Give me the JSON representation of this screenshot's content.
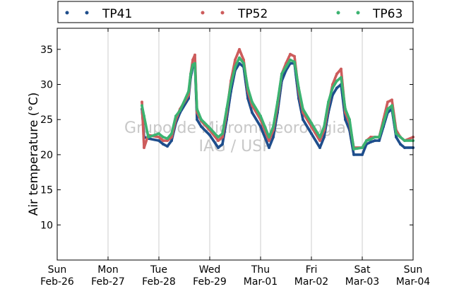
{
  "chart_data": {
    "type": "scatter",
    "title": "",
    "xlabel": "",
    "ylabel": "Air temperature (°C)",
    "ylim": [
      5,
      38
    ],
    "yticks": [
      10,
      15,
      20,
      25,
      30,
      35
    ],
    "xlim": [
      "2012-02-26",
      "2012-03-04"
    ],
    "xticks": [
      {
        "dow": "Sun",
        "date": "Feb-26"
      },
      {
        "dow": "Mon",
        "date": "Feb-27"
      },
      {
        "dow": "Tue",
        "date": "Feb-28"
      },
      {
        "dow": "Wed",
        "date": "Feb-29"
      },
      {
        "dow": "Thu",
        "date": "Mar-01"
      },
      {
        "dow": "Fri",
        "date": "Mar-02"
      },
      {
        "dow": "Sat",
        "date": "Mar-03"
      },
      {
        "dow": "Sun",
        "date": "Mar-04"
      }
    ],
    "grid": "vertical",
    "legend_position": "top",
    "watermark": [
      "Grupo de Micrometeorologia",
      "IAG / USP"
    ],
    "series": [
      {
        "name": "TP41",
        "color": "#1f4e8c",
        "points": [
          [
            "2012-02-27T16:00",
            26.5
          ],
          [
            "2012-02-27T17:00",
            22.5
          ],
          [
            "2012-02-27T19:00",
            22.3
          ],
          [
            "2012-02-28T00:00",
            22.0
          ],
          [
            "2012-02-28T02:00",
            21.5
          ],
          [
            "2012-02-28T04:00",
            21.2
          ],
          [
            "2012-02-28T06:00",
            22.0
          ],
          [
            "2012-02-28T08:00",
            24.5
          ],
          [
            "2012-02-28T10:00",
            26.0
          ],
          [
            "2012-02-28T14:00",
            28.0
          ],
          [
            "2012-02-28T15:00",
            31.0
          ],
          [
            "2012-02-28T16:00",
            32.5
          ],
          [
            "2012-02-28T17:00",
            33.0
          ],
          [
            "2012-02-28T18:00",
            25.0
          ],
          [
            "2012-02-28T20:00",
            24.0
          ],
          [
            "2012-02-29T00:00",
            22.8
          ],
          [
            "2012-02-29T04:00",
            21.0
          ],
          [
            "2012-02-29T06:00",
            21.5
          ],
          [
            "2012-02-29T08:00",
            25.0
          ],
          [
            "2012-02-29T10:00",
            29.0
          ],
          [
            "2012-02-29T12:00",
            32.0
          ],
          [
            "2012-02-29T14:00",
            33.0
          ],
          [
            "2012-02-29T16:00",
            32.5
          ],
          [
            "2012-02-29T18:00",
            28.0
          ],
          [
            "2012-02-29T20:00",
            26.0
          ],
          [
            "2012-03-01T00:00",
            24.0
          ],
          [
            "2012-03-01T04:00",
            21.0
          ],
          [
            "2012-03-01T06:00",
            22.5
          ],
          [
            "2012-03-01T08:00",
            26.0
          ],
          [
            "2012-03-01T10:00",
            30.5
          ],
          [
            "2012-03-01T12:00",
            32.0
          ],
          [
            "2012-03-01T14:00",
            33.0
          ],
          [
            "2012-03-01T16:00",
            33.0
          ],
          [
            "2012-03-01T18:00",
            28.0
          ],
          [
            "2012-03-01T20:00",
            25.0
          ],
          [
            "2012-03-02T00:00",
            23.0
          ],
          [
            "2012-03-02T04:00",
            21.0
          ],
          [
            "2012-03-02T06:00",
            22.5
          ],
          [
            "2012-03-02T08:00",
            26.0
          ],
          [
            "2012-03-02T10:00",
            28.5
          ],
          [
            "2012-03-02T12:00",
            29.5
          ],
          [
            "2012-03-02T14:00",
            30.0
          ],
          [
            "2012-03-02T16:00",
            25.0
          ],
          [
            "2012-03-02T18:00",
            23.5
          ],
          [
            "2012-03-02T20:00",
            20.0
          ],
          [
            "2012-03-03T00:00",
            20.0
          ],
          [
            "2012-03-03T02:00",
            21.5
          ],
          [
            "2012-03-03T04:00",
            21.8
          ],
          [
            "2012-03-03T06:00",
            22.0
          ],
          [
            "2012-03-03T08:00",
            22.0
          ],
          [
            "2012-03-03T10:00",
            24.0
          ],
          [
            "2012-03-03T12:00",
            26.0
          ],
          [
            "2012-03-03T14:00",
            26.5
          ],
          [
            "2012-03-03T16:00",
            22.5
          ],
          [
            "2012-03-03T18:00",
            21.5
          ],
          [
            "2012-03-03T20:00",
            21.0
          ],
          [
            "2012-03-04T00:00",
            21.0
          ]
        ]
      },
      {
        "name": "TP52",
        "color": "#cd5c5c",
        "points": [
          [
            "2012-02-27T16:00",
            27.5
          ],
          [
            "2012-02-27T17:00",
            21.0
          ],
          [
            "2012-02-27T19:00",
            22.8
          ],
          [
            "2012-02-28T00:00",
            22.5
          ],
          [
            "2012-02-28T02:00",
            22.0
          ],
          [
            "2012-02-28T04:00",
            22.0
          ],
          [
            "2012-02-28T06:00",
            22.5
          ],
          [
            "2012-02-28T08:00",
            25.0
          ],
          [
            "2012-02-28T10:00",
            26.5
          ],
          [
            "2012-02-28T14:00",
            28.5
          ],
          [
            "2012-02-28T15:00",
            31.5
          ],
          [
            "2012-02-28T16:00",
            33.5
          ],
          [
            "2012-02-28T17:00",
            34.2
          ],
          [
            "2012-02-28T18:00",
            26.0
          ],
          [
            "2012-02-28T20:00",
            24.8
          ],
          [
            "2012-02-29T00:00",
            23.5
          ],
          [
            "2012-02-29T04:00",
            22.0
          ],
          [
            "2012-02-29T06:00",
            22.5
          ],
          [
            "2012-02-29T08:00",
            26.0
          ],
          [
            "2012-02-29T10:00",
            30.5
          ],
          [
            "2012-02-29T12:00",
            33.5
          ],
          [
            "2012-02-29T14:00",
            35.0
          ],
          [
            "2012-02-29T16:00",
            33.5
          ],
          [
            "2012-02-29T18:00",
            29.0
          ],
          [
            "2012-02-29T20:00",
            27.0
          ],
          [
            "2012-03-01T00:00",
            25.0
          ],
          [
            "2012-03-01T04:00",
            22.0
          ],
          [
            "2012-03-01T06:00",
            23.5
          ],
          [
            "2012-03-01T08:00",
            27.0
          ],
          [
            "2012-03-01T10:00",
            31.5
          ],
          [
            "2012-03-01T12:00",
            33.0
          ],
          [
            "2012-03-01T14:00",
            34.3
          ],
          [
            "2012-03-01T16:00",
            34.0
          ],
          [
            "2012-03-01T18:00",
            29.0
          ],
          [
            "2012-03-01T20:00",
            26.0
          ],
          [
            "2012-03-02T00:00",
            24.0
          ],
          [
            "2012-03-02T04:00",
            22.0
          ],
          [
            "2012-03-02T06:00",
            23.5
          ],
          [
            "2012-03-02T08:00",
            27.0
          ],
          [
            "2012-03-02T10:00",
            30.0
          ],
          [
            "2012-03-02T12:00",
            31.5
          ],
          [
            "2012-03-02T14:00",
            32.2
          ],
          [
            "2012-03-02T16:00",
            26.0
          ],
          [
            "2012-03-02T18:00",
            24.5
          ],
          [
            "2012-03-02T20:00",
            21.0
          ],
          [
            "2012-03-03T00:00",
            21.0
          ],
          [
            "2012-03-03T02:00",
            22.0
          ],
          [
            "2012-03-03T04:00",
            22.5
          ],
          [
            "2012-03-03T06:00",
            22.5
          ],
          [
            "2012-03-03T08:00",
            22.5
          ],
          [
            "2012-03-03T10:00",
            25.0
          ],
          [
            "2012-03-03T12:00",
            27.5
          ],
          [
            "2012-03-03T14:00",
            27.8
          ],
          [
            "2012-03-03T16:00",
            23.5
          ],
          [
            "2012-03-03T18:00",
            22.5
          ],
          [
            "2012-03-03T20:00",
            22.0
          ],
          [
            "2012-03-04T00:00",
            22.5
          ]
        ]
      },
      {
        "name": "TP63",
        "color": "#3cb371",
        "points": [
          [
            "2012-02-27T16:00",
            27.0
          ],
          [
            "2012-02-27T17:00",
            25.5
          ],
          [
            "2012-02-27T19:00",
            22.5
          ],
          [
            "2012-02-28T00:00",
            23.0
          ],
          [
            "2012-02-28T02:00",
            22.5
          ],
          [
            "2012-02-28T04:00",
            22.3
          ],
          [
            "2012-02-28T06:00",
            23.0
          ],
          [
            "2012-02-28T08:00",
            25.5
          ],
          [
            "2012-02-28T10:00",
            26.3
          ],
          [
            "2012-02-28T14:00",
            29.0
          ],
          [
            "2012-02-28T15:00",
            31.5
          ],
          [
            "2012-02-28T16:00",
            32.8
          ],
          [
            "2012-02-28T17:00",
            33.0
          ],
          [
            "2012-02-28T18:00",
            26.5
          ],
          [
            "2012-02-28T20:00",
            25.0
          ],
          [
            "2012-02-29T00:00",
            23.8
          ],
          [
            "2012-02-29T04:00",
            22.5
          ],
          [
            "2012-02-29T06:00",
            23.0
          ],
          [
            "2012-02-29T08:00",
            26.5
          ],
          [
            "2012-02-29T10:00",
            30.0
          ],
          [
            "2012-02-29T12:00",
            32.5
          ],
          [
            "2012-02-29T14:00",
            33.8
          ],
          [
            "2012-02-29T16:00",
            33.0
          ],
          [
            "2012-02-29T18:00",
            29.5
          ],
          [
            "2012-02-29T20:00",
            27.5
          ],
          [
            "2012-03-01T00:00",
            25.5
          ],
          [
            "2012-03-01T04:00",
            22.5
          ],
          [
            "2012-03-01T06:00",
            24.0
          ],
          [
            "2012-03-01T08:00",
            27.5
          ],
          [
            "2012-03-01T10:00",
            31.5
          ],
          [
            "2012-03-01T12:00",
            32.5
          ],
          [
            "2012-03-01T14:00",
            33.5
          ],
          [
            "2012-03-01T16:00",
            33.2
          ],
          [
            "2012-03-01T18:00",
            29.5
          ],
          [
            "2012-03-01T20:00",
            26.5
          ],
          [
            "2012-03-02T00:00",
            24.5
          ],
          [
            "2012-03-02T04:00",
            22.5
          ],
          [
            "2012-03-02T06:00",
            24.0
          ],
          [
            "2012-03-02T08:00",
            27.5
          ],
          [
            "2012-03-02T10:00",
            29.5
          ],
          [
            "2012-03-02T12:00",
            30.5
          ],
          [
            "2012-03-02T14:00",
            31.0
          ],
          [
            "2012-03-02T16:00",
            26.5
          ],
          [
            "2012-03-02T18:00",
            25.0
          ],
          [
            "2012-03-02T20:00",
            20.8
          ],
          [
            "2012-03-03T00:00",
            21.0
          ],
          [
            "2012-03-03T02:00",
            22.0
          ],
          [
            "2012-03-03T04:00",
            22.2
          ],
          [
            "2012-03-03T06:00",
            22.5
          ],
          [
            "2012-03-03T08:00",
            22.5
          ],
          [
            "2012-03-03T10:00",
            24.5
          ],
          [
            "2012-03-03T12:00",
            26.5
          ],
          [
            "2012-03-03T14:00",
            27.0
          ],
          [
            "2012-03-03T16:00",
            23.0
          ],
          [
            "2012-03-03T18:00",
            22.5
          ],
          [
            "2012-03-03T20:00",
            22.0
          ],
          [
            "2012-03-04T00:00",
            22.0
          ]
        ]
      }
    ]
  }
}
